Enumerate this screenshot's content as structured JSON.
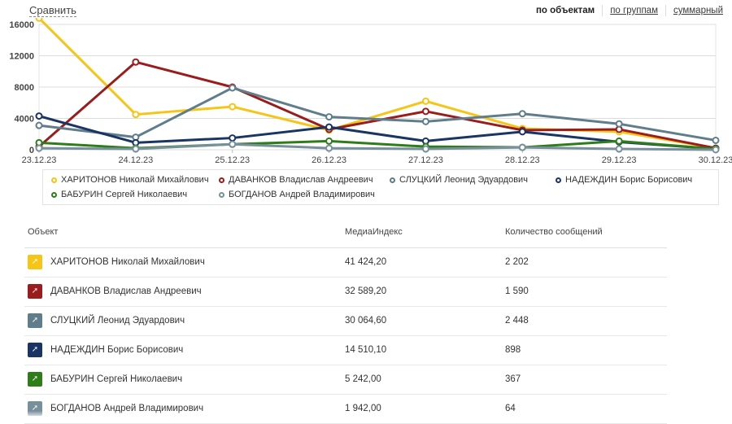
{
  "toolbar": {
    "compare_label": "Сравнить",
    "views": [
      "по объектам",
      "по группам",
      "суммарный"
    ]
  },
  "chart_data": {
    "type": "line",
    "categories": [
      "23.12.23",
      "24.12.23",
      "25.12.23",
      "26.12.23",
      "27.12.23",
      "28.12.23",
      "29.12.23",
      "30.12.23"
    ],
    "yticks": [
      0,
      4000,
      8000,
      12000,
      16000
    ],
    "ylim": [
      0,
      16000
    ],
    "grid": true,
    "legend_position": "bottom",
    "series": [
      {
        "name": "ХАРИТОНОВ Николай Михайлович",
        "color": "#f5c518",
        "values": [
          16800,
          4500,
          5500,
          2500,
          6200,
          2700,
          2300,
          200
        ]
      },
      {
        "name": "ДАВАНКОВ Владислав Андреевич",
        "color": "#9b1c1c",
        "values": [
          400,
          11200,
          8000,
          2600,
          4900,
          2500,
          2600,
          200
        ]
      },
      {
        "name": "СЛУЦКИЙ Леонид Эдуардович",
        "color": "#607d8b",
        "values": [
          3100,
          1600,
          7900,
          4200,
          3600,
          4600,
          3300,
          1200
        ]
      },
      {
        "name": "НАДЕЖДИН Борис Борисович",
        "color": "#1a3563",
        "values": [
          4300,
          900,
          1500,
          2900,
          1100,
          2300,
          1000,
          100
        ]
      },
      {
        "name": "БАБУРИН Сергей Николаевич",
        "color": "#2e7d1a",
        "values": [
          900,
          200,
          700,
          1100,
          400,
          300,
          1100,
          100
        ]
      },
      {
        "name": "БОГДАНОВ Андрей Владимирович",
        "color": "#78909c",
        "values": [
          200,
          100,
          700,
          200,
          100,
          300,
          100,
          0
        ]
      }
    ]
  },
  "table": {
    "headers": {
      "object": "Объект",
      "media_index": "МедиаИндекс",
      "messages": "Количество сообщений"
    },
    "rows": [
      {
        "name": "ХАРИТОНОВ Николай Михайлович",
        "color": "#f5c518",
        "icon": "pin-icon",
        "media_index": "41 424,20",
        "messages": "2 202"
      },
      {
        "name": "ДАВАНКОВ Владислав Андреевич",
        "color": "#9b1c1c",
        "icon": "pin-icon",
        "media_index": "32 589,20",
        "messages": "1 590"
      },
      {
        "name": "СЛУЦКИЙ Леонид Эдуардович",
        "color": "#607d8b",
        "icon": "pin-icon",
        "media_index": "30 064,60",
        "messages": "2 448"
      },
      {
        "name": "НАДЕЖДИН Борис Борисович",
        "color": "#1a3563",
        "icon": "pin-icon",
        "media_index": "14 510,10",
        "messages": "898"
      },
      {
        "name": "БАБУРИН Сергей Николаевич",
        "color": "#2e7d1a",
        "icon": "pin-icon",
        "media_index": "5 242,00",
        "messages": "367"
      },
      {
        "name": "БОГДАНОВ Андрей Владимирович",
        "color": "#78909c",
        "icon": "pin-icon",
        "media_index": "1 942,00",
        "messages": "64"
      }
    ]
  }
}
